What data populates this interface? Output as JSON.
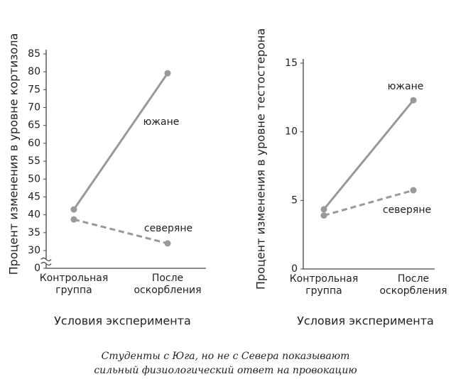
{
  "chart_data": [
    {
      "type": "line",
      "y_label": "Процент изменения в уровне кортизола",
      "x_label": "Условия эксперимента",
      "categories": [
        "Контрольная группа",
        "После оскорбления"
      ],
      "series": [
        {
          "name": "южане",
          "color": "#999999",
          "dash": false,
          "values": [
            41.5,
            79.6
          ]
        },
        {
          "name": "северяне",
          "color": "#999999",
          "dash": true,
          "values": [
            38.7,
            32.0
          ]
        }
      ],
      "ylim": [
        0,
        85
      ],
      "axis_break": [
        0,
        30
      ],
      "yticks": [
        0,
        30,
        35,
        40,
        45,
        50,
        55,
        60,
        65,
        70,
        75,
        80,
        85
      ]
    },
    {
      "type": "line",
      "y_label": "Процент изменения в уровне тестостерона",
      "x_label": "Условия эксперимента",
      "categories": [
        "Контрольная группа",
        "После оскорбления"
      ],
      "series": [
        {
          "name": "южане",
          "color": "#999999",
          "dash": false,
          "values": [
            4.35,
            12.3
          ]
        },
        {
          "name": "северяне",
          "color": "#999999",
          "dash": true,
          "values": [
            3.9,
            5.74
          ]
        }
      ],
      "ylim": [
        0,
        15
      ],
      "yticks": [
        0,
        5,
        10,
        15
      ]
    }
  ],
  "caption": [
    "Студенты с Юга, но не с Севера показывают",
    "сильный физиологический ответ на провокацию"
  ]
}
